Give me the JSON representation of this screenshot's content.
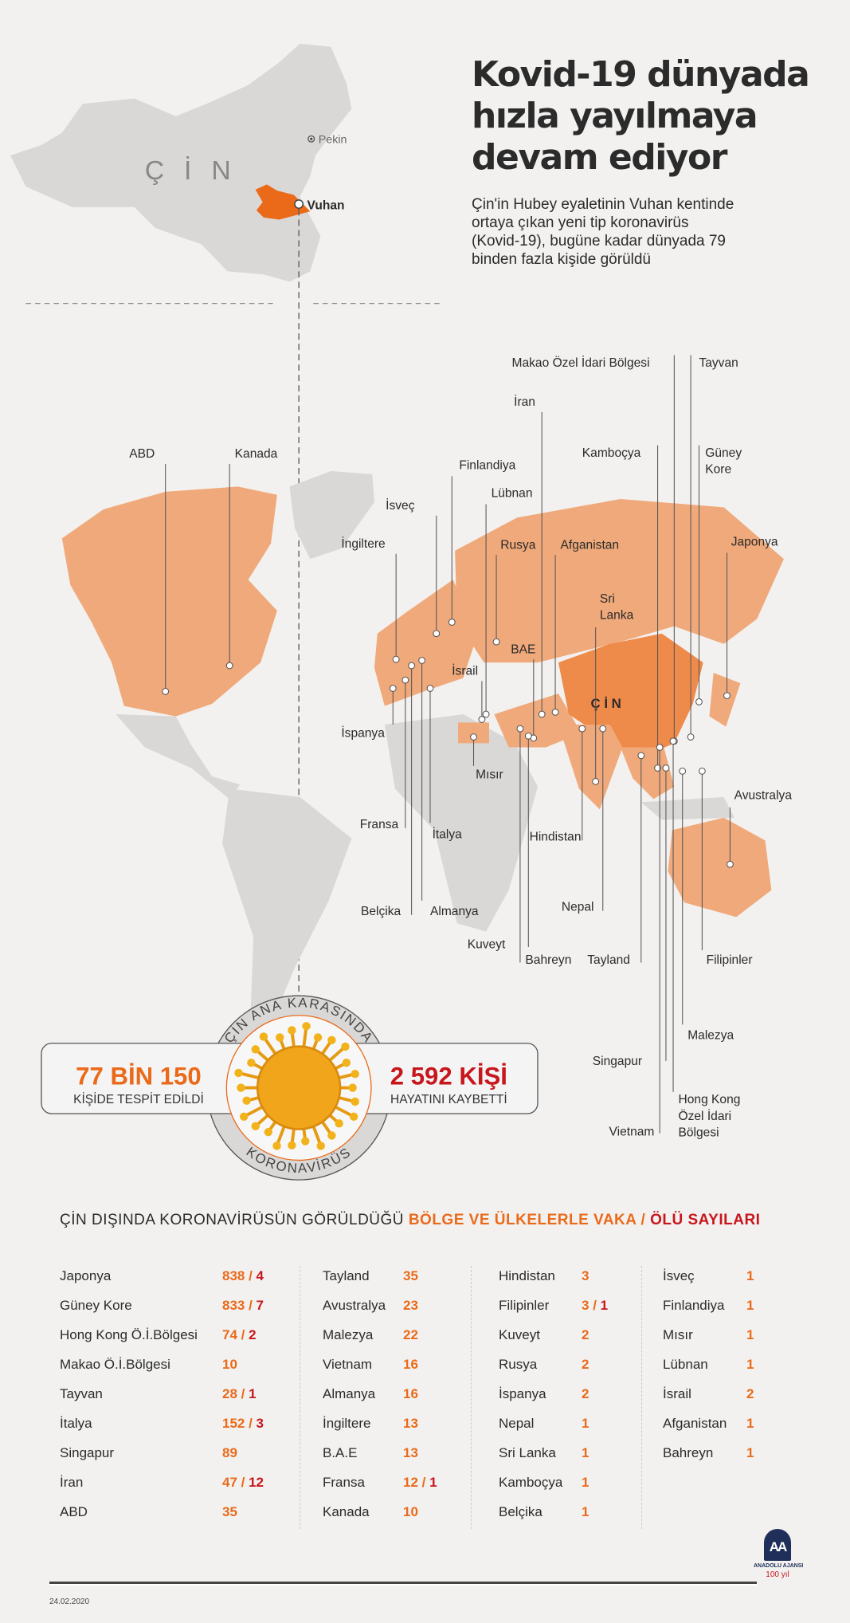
{
  "header": {
    "title_lines": [
      "Kovid-19 dünyada",
      "hızla yayılmaya",
      "devam ediyor"
    ],
    "subtitle_lines": [
      "Çin'in Hubey eyaletinin Vuhan kentinde",
      "ortaya çıkan yeni tip koronavirüs",
      "(Kovid-19), bugüne kadar dünyada 79",
      "binden fazla kişide görüldü"
    ]
  },
  "china_map": {
    "country_label": "Ç İ N",
    "capital": "Pekin",
    "city": "Vuhan"
  },
  "world_map": {
    "china_label": "Ç İ N",
    "callouts": [
      {
        "lines": [
          "ABD"
        ]
      },
      {
        "lines": [
          "Kanada"
        ]
      },
      {
        "lines": [
          "Finlandiya"
        ]
      },
      {
        "lines": [
          "İsveç"
        ]
      },
      {
        "lines": [
          "Lübnan"
        ]
      },
      {
        "lines": [
          "İngiltere"
        ]
      },
      {
        "lines": [
          "Rusya"
        ]
      },
      {
        "lines": [
          "Afganistan"
        ]
      },
      {
        "lines": [
          "İran"
        ]
      },
      {
        "lines": [
          "Makao Özel İdari Bölgesi"
        ]
      },
      {
        "lines": [
          "Tayvan"
        ]
      },
      {
        "lines": [
          "Kamboçya"
        ]
      },
      {
        "lines": [
          "Güney",
          "Kore"
        ]
      },
      {
        "lines": [
          "Japonya"
        ]
      },
      {
        "lines": [
          "Sri",
          "Lanka"
        ]
      },
      {
        "lines": [
          "BAE"
        ]
      },
      {
        "lines": [
          "İsrail"
        ]
      },
      {
        "lines": [
          "İspanya"
        ]
      },
      {
        "lines": [
          "Mısır"
        ]
      },
      {
        "lines": [
          "Fransa"
        ]
      },
      {
        "lines": [
          "İtalya"
        ]
      },
      {
        "lines": [
          "Belçika"
        ]
      },
      {
        "lines": [
          "Almanya"
        ]
      },
      {
        "lines": [
          "Hindistan"
        ]
      },
      {
        "lines": [
          "Nepal"
        ]
      },
      {
        "lines": [
          "Kuveyt"
        ]
      },
      {
        "lines": [
          "Bahreyn"
        ]
      },
      {
        "lines": [
          "Tayland"
        ]
      },
      {
        "lines": [
          "Filipinler"
        ]
      },
      {
        "lines": [
          "Avustralya"
        ]
      },
      {
        "lines": [
          "Malezya"
        ]
      },
      {
        "lines": [
          "Singapur"
        ]
      },
      {
        "lines": [
          "Vietnam"
        ]
      },
      {
        "lines": [
          "Hong Kong",
          "Özel İdari",
          "Bölgesi"
        ]
      }
    ]
  },
  "badge": {
    "top_arc": "ÇİN ANA KARASINDA",
    "bottom_arc": "KORONAVİRÜS",
    "cases_value": "77 BİN 150",
    "cases_label": "KİŞİDE TESPİT EDİLDİ",
    "deaths_value": "2 592 KİŞİ",
    "deaths_label": "HAYATINI KAYBETTİ"
  },
  "table": {
    "title_prefix": "ÇİN DIŞINDA KORONAVİRÜSÜN GÖRÜLDÜĞÜ ",
    "title_cases": "BÖLGE VE ÜLKELERLE VAKA / ",
    "title_deaths": "ÖLÜ SAYILARI",
    "columns": [
      [
        {
          "name": "Japonya",
          "cases": "838",
          "deaths": "4"
        },
        {
          "name": "Güney Kore",
          "cases": "833",
          "deaths": "7"
        },
        {
          "name": "Hong Kong Ö.İ.Bölgesi",
          "cases": "74",
          "deaths": "2"
        },
        {
          "name": "Makao Ö.İ.Bölgesi",
          "cases": "10"
        },
        {
          "name": "Tayvan",
          "cases": "28",
          "deaths": "1"
        },
        {
          "name": "İtalya",
          "cases": "152",
          "deaths": "3"
        },
        {
          "name": "Singapur",
          "cases": "89"
        },
        {
          "name": "İran",
          "cases": "47",
          "deaths": "12"
        },
        {
          "name": "ABD",
          "cases": "35"
        }
      ],
      [
        {
          "name": "Tayland",
          "cases": "35"
        },
        {
          "name": "Avustralya",
          "cases": "23"
        },
        {
          "name": "Malezya",
          "cases": "22"
        },
        {
          "name": "Vietnam",
          "cases": "16"
        },
        {
          "name": "Almanya",
          "cases": "16"
        },
        {
          "name": "İngiltere",
          "cases": "13"
        },
        {
          "name": "B.A.E",
          "cases": "13"
        },
        {
          "name": "Fransa",
          "cases": "12",
          "deaths": "1"
        },
        {
          "name": "Kanada",
          "cases": "10"
        }
      ],
      [
        {
          "name": "Hindistan",
          "cases": "3"
        },
        {
          "name": "Filipinler",
          "cases": "3",
          "deaths": "1"
        },
        {
          "name": "Kuveyt",
          "cases": "2"
        },
        {
          "name": "Rusya",
          "cases": "2"
        },
        {
          "name": "İspanya",
          "cases": "2"
        },
        {
          "name": "Nepal",
          "cases": "1"
        },
        {
          "name": "Sri Lanka",
          "cases": "1"
        },
        {
          "name": "Kamboçya",
          "cases": "1"
        },
        {
          "name": "Belçika",
          "cases": "1"
        }
      ],
      [
        {
          "name": "İsveç",
          "cases": "1"
        },
        {
          "name": "Finlandiya",
          "cases": "1"
        },
        {
          "name": "Mısır",
          "cases": "1"
        },
        {
          "name": "Lübnan",
          "cases": "1"
        },
        {
          "name": "İsrail",
          "cases": "2"
        },
        {
          "name": "Afganistan",
          "cases": "1"
        },
        {
          "name": "Bahreyn",
          "cases": "1"
        }
      ]
    ]
  },
  "footer": {
    "date": "24.02.2020",
    "logo_mark": "AA",
    "logo_name": "ANADOLU AJANSI",
    "anniversary": "100 yıl"
  },
  "colors": {
    "background": "#f2f1ef",
    "land": "#d9d8d6",
    "affected": "#f0a97a",
    "china": "#ee8a4a",
    "hubei": "#ea6a1a",
    "cases": "#ea6a1a",
    "deaths": "#c8161d"
  }
}
